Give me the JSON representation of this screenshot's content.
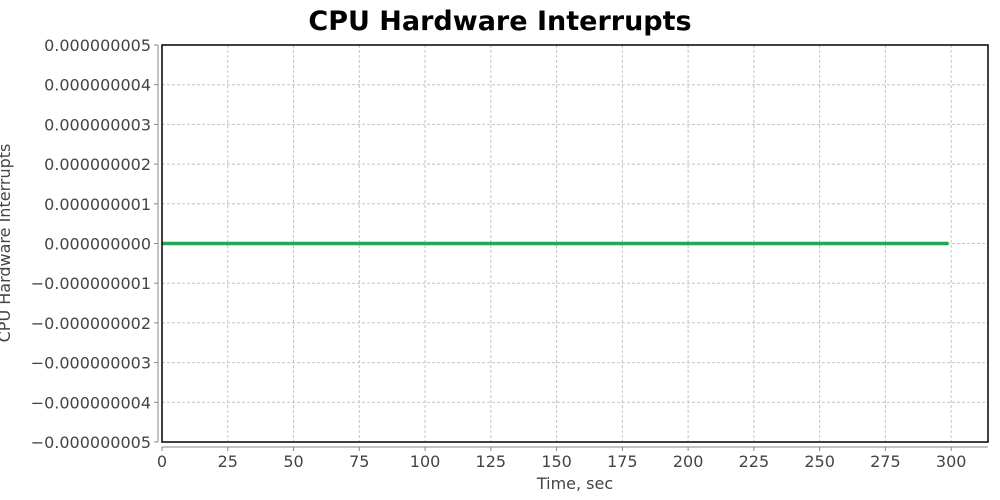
{
  "chart_data": {
    "type": "line",
    "title": "CPU Hardware Interrupts",
    "xlabel": "Time, sec",
    "ylabel": "CPU Hardware Interrupts",
    "xlim": [
      0,
      314
    ],
    "ylim": [
      -5e-09,
      5e-09
    ],
    "x_ticks": [
      "0",
      "25",
      "50",
      "75",
      "100",
      "125",
      "150",
      "175",
      "200",
      "225",
      "250",
      "275",
      "300"
    ],
    "y_ticks": [
      "0.000000005",
      "0.000000004",
      "0.000000003",
      "0.000000002",
      "0.000000001",
      "0.000000000",
      "-0.000000001",
      "-0.000000002",
      "-0.000000003",
      "-0.000000004",
      "-0.000000005"
    ],
    "grid": true,
    "legend": "none",
    "series": [
      {
        "color": "#1fa85a",
        "x": [
          0,
          299
        ],
        "y": [
          0,
          0
        ]
      }
    ]
  }
}
